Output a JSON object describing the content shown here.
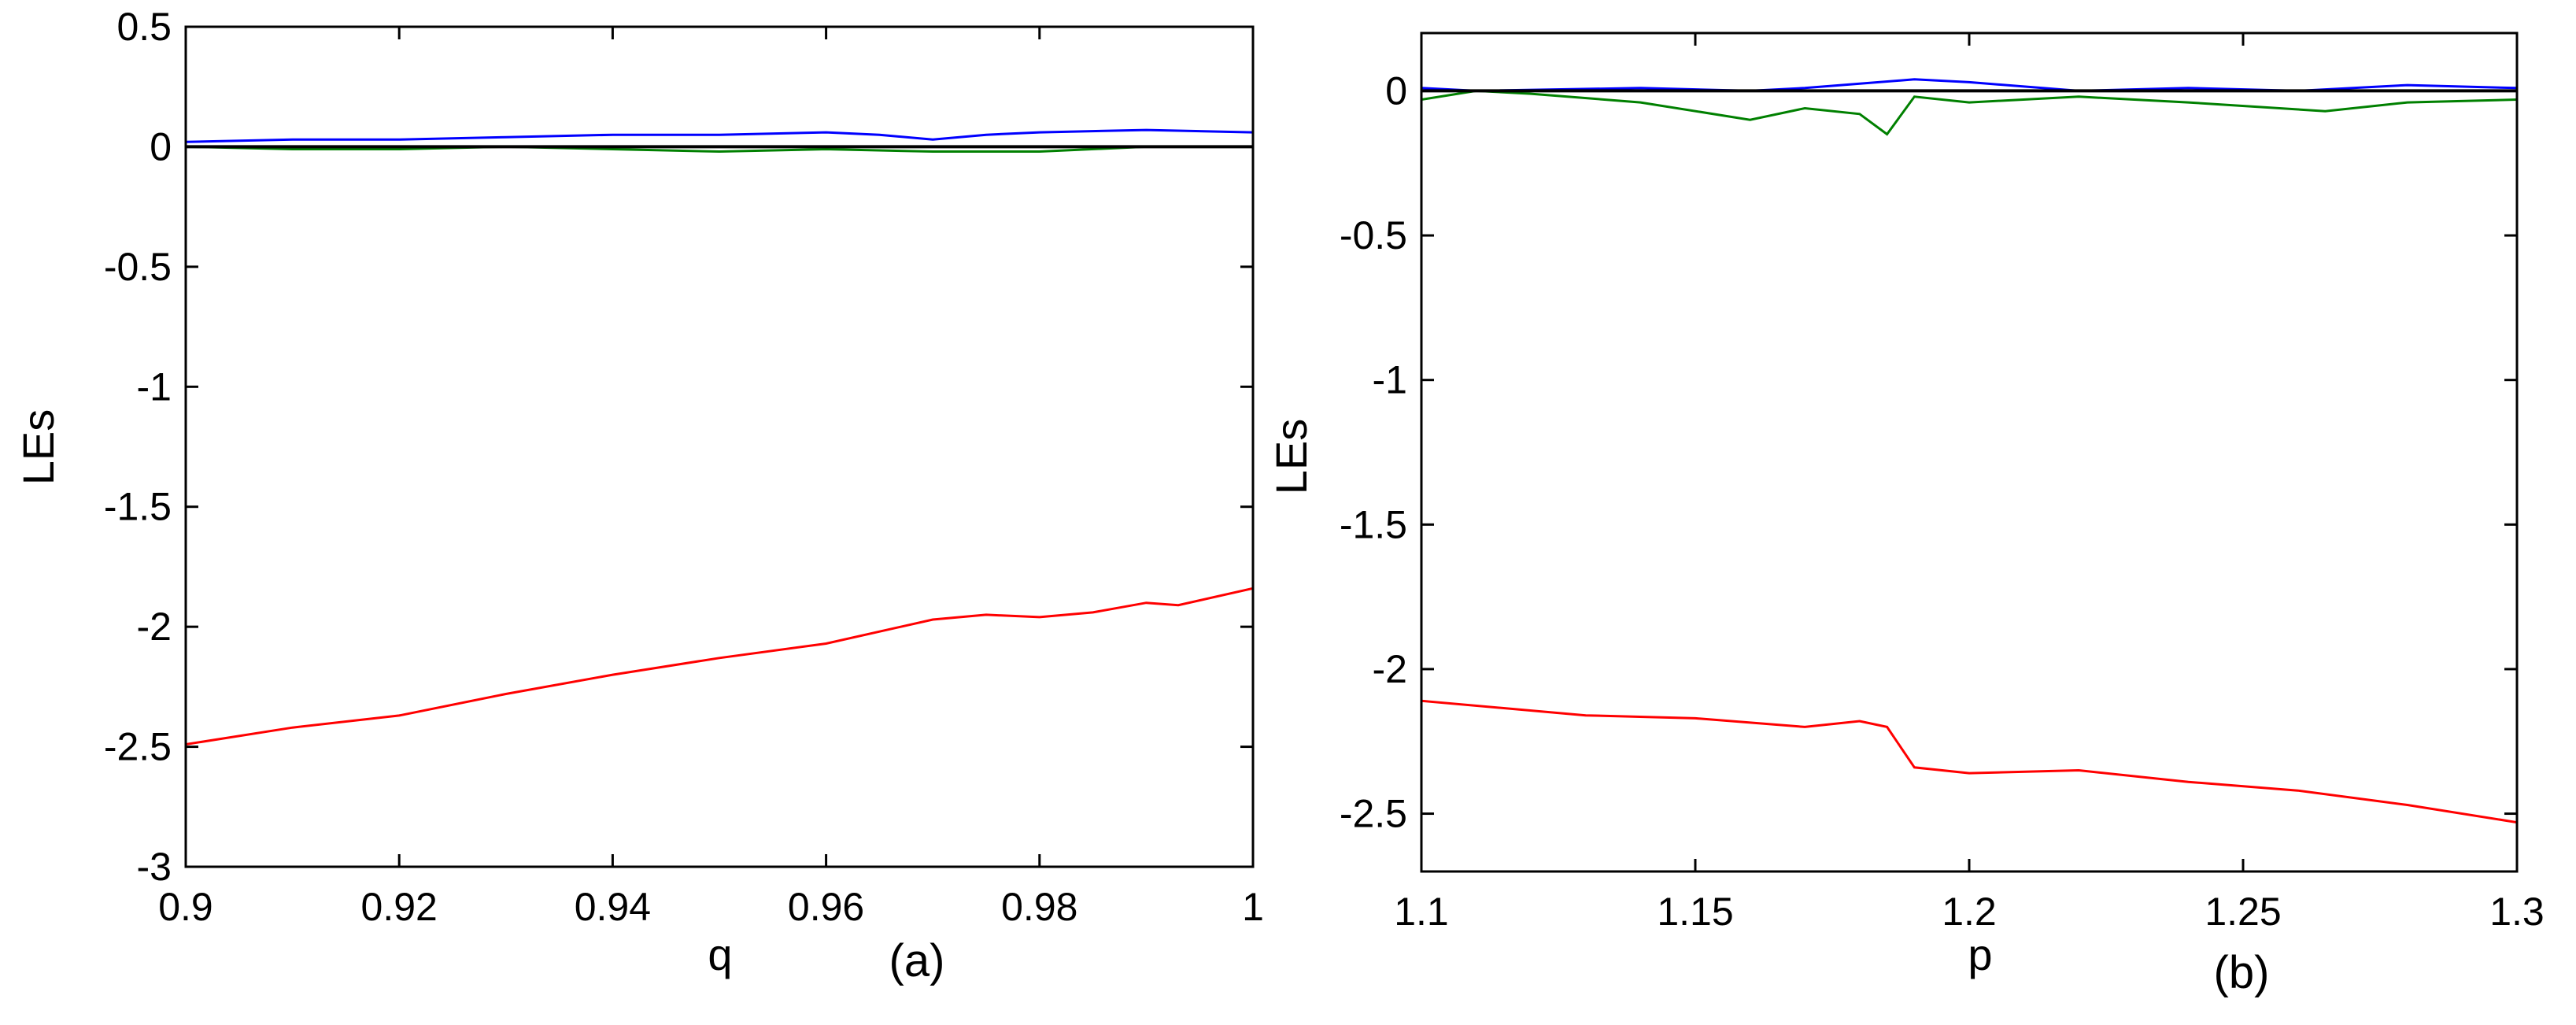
{
  "chart_data": [
    {
      "type": "line",
      "panel_label": "(a)",
      "xlabel": "q",
      "ylabel": "LEs",
      "xlim": [
        0.9,
        1.0
      ],
      "ylim": [
        -3,
        0.5
      ],
      "xticks": [
        "0.9",
        "0.92",
        "0.94",
        "0.96",
        "0.98",
        "1"
      ],
      "xtick_values": [
        0.9,
        0.92,
        0.94,
        0.96,
        0.98,
        1.0
      ],
      "yticks": [
        "0.5",
        "0",
        "-0.5",
        "-1",
        "-1.5",
        "-2",
        "-2.5",
        "-3"
      ],
      "ytick_values": [
        0.5,
        0,
        -0.5,
        -1,
        -1.5,
        -2,
        -2.5,
        -3
      ],
      "grid": false,
      "series": [
        {
          "color": "#0000ff",
          "x": [
            0.9,
            0.91,
            0.92,
            0.93,
            0.94,
            0.95,
            0.96,
            0.965,
            0.97,
            0.975,
            0.98,
            0.99,
            1.0
          ],
          "y": [
            0.02,
            0.03,
            0.03,
            0.04,
            0.05,
            0.05,
            0.06,
            0.05,
            0.03,
            0.05,
            0.06,
            0.07,
            0.06
          ]
        },
        {
          "color": "#008000",
          "x": [
            0.9,
            0.91,
            0.92,
            0.93,
            0.94,
            0.95,
            0.96,
            0.97,
            0.98,
            0.99,
            1.0
          ],
          "y": [
            0.0,
            -0.01,
            -0.01,
            0.0,
            -0.01,
            -0.02,
            -0.01,
            -0.02,
            -0.02,
            0.0,
            0.0
          ]
        },
        {
          "color": "#000000",
          "x": [
            0.9,
            1.0
          ],
          "y": [
            0.0,
            0.0
          ]
        },
        {
          "color": "#ff0000",
          "x": [
            0.9,
            0.91,
            0.92,
            0.93,
            0.94,
            0.95,
            0.96,
            0.97,
            0.975,
            0.98,
            0.985,
            0.99,
            0.993,
            1.0
          ],
          "y": [
            -2.49,
            -2.42,
            -2.37,
            -2.28,
            -2.2,
            -2.13,
            -2.07,
            -1.97,
            -1.95,
            -1.96,
            -1.94,
            -1.9,
            -1.91,
            -1.84
          ]
        }
      ]
    },
    {
      "type": "line",
      "panel_label": "(b)",
      "xlabel": "p",
      "ylabel": "LEs",
      "xlim": [
        1.1,
        1.3
      ],
      "ylim": [
        -2.7,
        0.2
      ],
      "xticks": [
        "1.1",
        "1.15",
        "1.2",
        "1.25",
        "1.3"
      ],
      "xtick_values": [
        1.1,
        1.15,
        1.2,
        1.25,
        1.3
      ],
      "yticks": [
        "0",
        "-0.5",
        "-1",
        "-1.5",
        "-2",
        "-2.5"
      ],
      "ytick_values": [
        0,
        -0.5,
        -1,
        -1.5,
        -2,
        -2.5
      ],
      "grid": false,
      "series": [
        {
          "color": "#0000ff",
          "x": [
            1.1,
            1.11,
            1.14,
            1.16,
            1.17,
            1.19,
            1.2,
            1.22,
            1.24,
            1.26,
            1.28,
            1.3
          ],
          "y": [
            0.01,
            0.0,
            0.01,
            0.0,
            0.01,
            0.04,
            0.03,
            0.0,
            0.01,
            0.0,
            0.02,
            0.01
          ]
        },
        {
          "color": "#008000",
          "x": [
            1.1,
            1.11,
            1.12,
            1.14,
            1.16,
            1.17,
            1.18,
            1.185,
            1.19,
            1.2,
            1.22,
            1.24,
            1.265,
            1.28,
            1.3
          ],
          "y": [
            -0.03,
            0.0,
            -0.01,
            -0.04,
            -0.1,
            -0.06,
            -0.08,
            -0.15,
            -0.02,
            -0.04,
            -0.02,
            -0.04,
            -0.07,
            -0.04,
            -0.03
          ]
        },
        {
          "color": "#000000",
          "x": [
            1.1,
            1.3
          ],
          "y": [
            0.0,
            0.0
          ]
        },
        {
          "color": "#ff0000",
          "x": [
            1.1,
            1.13,
            1.15,
            1.17,
            1.18,
            1.185,
            1.19,
            1.2,
            1.22,
            1.24,
            1.26,
            1.28,
            1.3
          ],
          "y": [
            -2.11,
            -2.16,
            -2.17,
            -2.2,
            -2.18,
            -2.2,
            -2.34,
            -2.36,
            -2.35,
            -2.39,
            -2.42,
            -2.47,
            -2.53
          ]
        }
      ]
    }
  ]
}
